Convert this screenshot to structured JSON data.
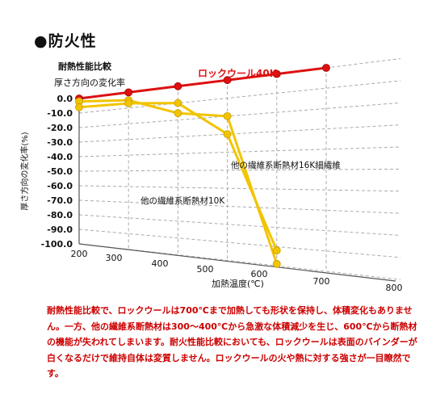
{
  "page_title": "●防火性",
  "caption": "耐熱性能比較で、ロックウールは700℃まで加熱しても形状を保持し、体積変化もありません。一方、他の繊維系断熱材は300～400℃から急激な体積減少を生じ、600℃から断熱材の機能が失われてしまいます。耐火性能比較においても、ロックウールは表面のバインダーが白くなるだけで維持自体は変質しません。ロックウールの火や熱に対する強さが一目瞭然です。",
  "colors": {
    "rockwool": "#dd1111",
    "other": "#f2c400",
    "caption": "#cc0000"
  },
  "chart_data": {
    "type": "line",
    "title": "耐熱性能比較",
    "subtitle": "厚さ方向の変化率",
    "xlabel": "加熱温度(℃)",
    "ylabel": "厚さ方向の変化率(%)",
    "x_ticks": [
      "200",
      "300",
      "400",
      "500",
      "600",
      "700",
      "800"
    ],
    "y_ticks": [
      "0.0",
      "-10.0",
      "-20.0",
      "-30.0",
      "-40.0",
      "-50.0",
      "-60.0",
      "-70.0",
      "-80.0",
      "-90.0",
      "-100.0"
    ],
    "xlim": [
      200,
      800
    ],
    "ylim": [
      -100,
      0
    ],
    "grid": true,
    "series": [
      {
        "name": "ロックウール40K",
        "color": "#dd1111",
        "x": [
          200,
          300,
          400,
          500,
          600,
          700
        ],
        "y": [
          0,
          0,
          0,
          0,
          0,
          0
        ]
      },
      {
        "name": "他の繊維系断熱材16K細繊維",
        "color": "#f2c400",
        "x": [
          200,
          300,
          400,
          500,
          600
        ],
        "y": [
          -2,
          -5,
          -16,
          -20,
          -99
        ]
      },
      {
        "name": "他の繊維系断熱材10K",
        "color": "#f2c400",
        "x": [
          200,
          300,
          400,
          500,
          600
        ],
        "y": [
          -6,
          -7,
          -10,
          -30,
          -92
        ]
      }
    ]
  }
}
